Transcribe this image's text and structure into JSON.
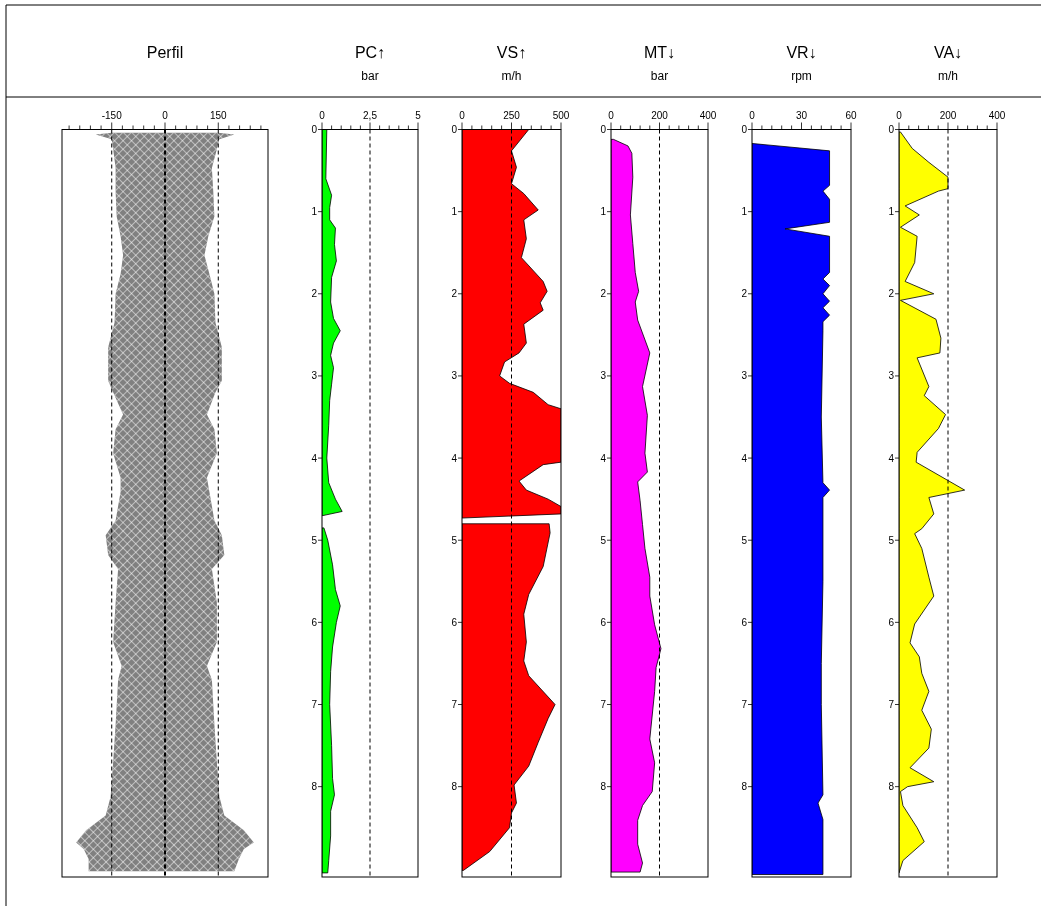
{
  "chart_data": [
    {
      "type": "area",
      "title": "Perfil",
      "orientation": "horizontal",
      "tick_labels": "x",
      "xlim": [
        -290,
        290
      ],
      "xticks": [
        {
          "value": -270,
          "label": null
        },
        {
          "value": -240,
          "label": null
        },
        {
          "value": -210,
          "label": null
        },
        {
          "value": -180,
          "label": null
        },
        -150,
        {
          "value": -120,
          "label": null
        },
        {
          "value": -90,
          "label": null
        },
        {
          "value": -60,
          "label": null
        },
        {
          "value": -30,
          "label": null
        },
        0,
        {
          "value": 30,
          "label": null
        },
        {
          "value": 60,
          "label": null
        },
        {
          "value": 90,
          "label": null
        },
        {
          "value": 120,
          "label": null
        },
        150,
        {
          "value": 180,
          "label": null
        },
        {
          "value": 210,
          "label": null
        },
        {
          "value": 240,
          "label": null
        },
        {
          "value": 270,
          "label": null
        }
      ],
      "ylim": [
        9.1,
        0
      ],
      "ref_lines": [
        {
          "axis": "x",
          "value": -150,
          "color": "#000000",
          "line_style": "dashed"
        },
        {
          "axis": "x",
          "value": 0,
          "color": "#000000",
          "line_style": "dashed"
        },
        {
          "axis": "x",
          "value": 150,
          "color": "#000000",
          "line_style": "dashed"
        }
      ],
      "series": [
        {
          "color": "#808080",
          "x": [
            0.04,
            0.06,
            0.12,
            0.24,
            0.47,
            0.76,
            1.06,
            1.3,
            1.53,
            1.76,
            2.0,
            2.35,
            2.65,
            3.06,
            3.2,
            3.47,
            3.65,
            3.94,
            4.24,
            4.41,
            4.76,
            4.94,
            5.18,
            5.35,
            5.76,
            6.24,
            6.53,
            6.7,
            7.24,
            7.7,
            8.12,
            8.35,
            8.53,
            8.68,
            8.76,
            8.88,
            9.03
          ],
          "values": [
            150,
            195,
            153,
            146,
            132,
            136,
            139,
            122,
            111,
            125,
            139,
            142,
            160,
            160,
            142,
            118,
            139,
            146,
            118,
            125,
            139,
            160,
            167,
            132,
            146,
            146,
            118,
            132,
            139,
            146,
            153,
            167,
            222,
            250,
            222,
            208,
            195
          ]
        },
        {
          "color": "#808080",
          "x": [
            0.04,
            0.06,
            0.12,
            0.24,
            0.47,
            0.76,
            1.06,
            1.3,
            1.53,
            1.76,
            2.0,
            2.35,
            2.65,
            3.06,
            3.2,
            3.47,
            3.65,
            3.94,
            4.24,
            4.41,
            4.76,
            4.94,
            5.18,
            5.35,
            5.76,
            6.24,
            6.53,
            6.7,
            7.24,
            7.7,
            8.12,
            8.35,
            8.53,
            8.68,
            8.76,
            8.88,
            9.03
          ],
          "values": [
            -150,
            -195,
            -150,
            -146,
            -139,
            -139,
            -136,
            -125,
            -118,
            -125,
            -139,
            -142,
            -160,
            -160,
            -146,
            -118,
            -139,
            -146,
            -125,
            -125,
            -139,
            -167,
            -160,
            -132,
            -139,
            -146,
            -122,
            -132,
            -139,
            -146,
            -153,
            -167,
            -222,
            -250,
            -229,
            -215,
            -215
          ]
        }
      ]
    },
    {
      "type": "area",
      "title": "PC↑",
      "subtitle": "bar",
      "orientation": "horizontal",
      "xlim": [
        0,
        5
      ],
      "xticks": [
        0,
        {
          "value": 0.5,
          "label": null
        },
        {
          "value": 1,
          "label": null
        },
        {
          "value": 1.5,
          "label": null
        },
        {
          "value": 2,
          "label": null
        },
        {
          "value": 2.5,
          "label": "2,5"
        },
        {
          "value": 3,
          "label": null
        },
        {
          "value": 3.5,
          "label": null
        },
        {
          "value": 4,
          "label": null
        },
        {
          "value": 4.5,
          "label": null
        },
        5
      ],
      "ylim": [
        9.1,
        0
      ],
      "yticks": [
        0,
        1,
        2,
        3,
        4,
        5,
        6,
        7,
        8
      ],
      "ref_lines": [
        {
          "axis": "x",
          "value": 2.5,
          "color": "#000000",
          "line_style": "dashed"
        }
      ],
      "series": [
        {
          "color": "#00ff00",
          "x": [
            0,
            0.6,
            0.8,
            0.95,
            1.1,
            1.2,
            1.4,
            1.6,
            1.8,
            2.1,
            2.3,
            2.45,
            2.6,
            2.75,
            2.9,
            3.1,
            3.3,
            3.6,
            4.0,
            4.3,
            4.5,
            4.65,
            4.7,
            4.78,
            4.85,
            5.0,
            5.3,
            5.6,
            5.8,
            6.0,
            6.3,
            6.6,
            7.0,
            7.5,
            7.9,
            8.1,
            8.3,
            8.6,
            8.9,
            9.05
          ],
          "values": [
            0.25,
            0.2,
            0.5,
            0.4,
            0.4,
            0.7,
            0.65,
            0.75,
            0.5,
            0.45,
            0.6,
            0.95,
            0.6,
            0.45,
            0.6,
            0.5,
            0.4,
            0.35,
            0.25,
            0.35,
            0.7,
            1.05,
            0.05,
            null,
            0.1,
            0.3,
            0.55,
            0.7,
            0.95,
            0.75,
            0.55,
            0.45,
            0.4,
            0.5,
            0.55,
            0.65,
            0.45,
            0.45,
            0.35,
            0.3
          ]
        }
      ]
    },
    {
      "type": "area",
      "title": "VS↑",
      "subtitle": "m/h",
      "orientation": "horizontal",
      "xlim": [
        0,
        500
      ],
      "xticks": [
        0,
        {
          "value": 50,
          "label": null
        },
        {
          "value": 100,
          "label": null
        },
        {
          "value": 150,
          "label": null
        },
        {
          "value": 200,
          "label": null
        },
        250,
        {
          "value": 300,
          "label": null
        },
        {
          "value": 350,
          "label": null
        },
        {
          "value": 400,
          "label": null
        },
        {
          "value": 450,
          "label": null
        },
        500
      ],
      "ylim": [
        9.1,
        0
      ],
      "yticks": [
        0,
        1,
        2,
        3,
        4,
        5,
        6,
        7,
        8
      ],
      "ref_lines": [
        {
          "axis": "x",
          "value": 250,
          "color": "#000000",
          "line_style": "dashed"
        }
      ],
      "series": [
        {
          "color": "#ff0000",
          "x": [
            0,
            0.26,
            0.46,
            0.66,
            0.78,
            0.98,
            1.1,
            1.33,
            1.56,
            1.85,
            1.97,
            2.11,
            2.2,
            2.37,
            2.6,
            2.72,
            2.83,
            3.0,
            3.09,
            3.2,
            3.35,
            3.4,
            4.05,
            4.08,
            4.28,
            4.39,
            4.5,
            4.59,
            4.68,
            4.73,
            4.76,
            4.8,
            4.91,
            5.32,
            5.66,
            5.9,
            6.24,
            6.47,
            6.65,
            7.0,
            7.17,
            7.46,
            7.75,
            7.98,
            8.2,
            8.32,
            8.5,
            8.79,
            9.02
          ],
          "values": [
            337,
            250,
            275,
            250,
            312,
            385,
            312,
            325,
            300,
            410,
            430,
            395,
            410,
            312,
            325,
            288,
            215,
            190,
            240,
            360,
            435,
            500,
            500,
            410,
            288,
            325,
            435,
            500,
            500,
            0,
            null,
            440,
            445,
            410,
            337,
            312,
            325,
            312,
            337,
            470,
            435,
            385,
            337,
            263,
            275,
            250,
            240,
            140,
            7
          ]
        }
      ]
    },
    {
      "type": "area",
      "title": "MT↓",
      "subtitle": "bar",
      "orientation": "horizontal",
      "xlim": [
        0,
        400
      ],
      "xticks": [
        0,
        {
          "value": 40,
          "label": null
        },
        {
          "value": 80,
          "label": null
        },
        {
          "value": 120,
          "label": null
        },
        {
          "value": 160,
          "label": null
        },
        200,
        {
          "value": 240,
          "label": null
        },
        {
          "value": 280,
          "label": null
        },
        {
          "value": 320,
          "label": null
        },
        {
          "value": 360,
          "label": null
        },
        400
      ],
      "ylim": [
        9.1,
        0
      ],
      "yticks": [
        0,
        1,
        2,
        3,
        4,
        5,
        6,
        7,
        8
      ],
      "ref_lines": [
        {
          "axis": "x",
          "value": 200,
          "color": "#000000",
          "line_style": "dashed"
        }
      ],
      "series": [
        {
          "color": "#ff00ff",
          "x": [
            0.12,
            0.2,
            0.29,
            0.58,
            1.04,
            1.39,
            1.74,
            1.97,
            2.1,
            2.32,
            2.72,
            3.13,
            3.48,
            3.94,
            4.17,
            4.29,
            4.52,
            4.81,
            5.1,
            5.45,
            5.68,
            6.03,
            6.32,
            6.55,
            6.84,
            7.42,
            7.71,
            8.06,
            8.23,
            8.41,
            8.7,
            8.93,
            9.04
          ],
          "values": [
            10,
            70,
            86,
            90,
            80,
            90,
            100,
            114,
            100,
            110,
            160,
            130,
            150,
            140,
            150,
            110,
            120,
            130,
            140,
            160,
            160,
            180,
            206,
            186,
            180,
            160,
            180,
            170,
            130,
            110,
            110,
            130,
            120
          ]
        }
      ]
    },
    {
      "type": "area",
      "title": "VR↓",
      "subtitle": "rpm",
      "orientation": "horizontal",
      "xlim": [
        0,
        60
      ],
      "xticks": [
        0,
        {
          "value": 6,
          "label": null
        },
        {
          "value": 12,
          "label": null
        },
        {
          "value": 18,
          "label": null
        },
        {
          "value": 24,
          "label": null
        },
        30,
        {
          "value": 36,
          "label": null
        },
        {
          "value": 42,
          "label": null
        },
        {
          "value": 48,
          "label": null
        },
        {
          "value": 54,
          "label": null
        },
        60
      ],
      "ylim": [
        9.1,
        0
      ],
      "yticks": [
        0,
        1,
        2,
        3,
        4,
        5,
        6,
        7,
        8
      ],
      "series": [
        {
          "color": "#0000ff",
          "x": [
            0.17,
            0.26,
            0.68,
            0.75,
            0.85,
            1.13,
            1.21,
            1.3,
            1.74,
            1.82,
            1.9,
            2.0,
            2.09,
            2.17,
            2.26,
            2.34,
            2.45,
            3.5,
            4.3,
            4.39,
            4.48,
            5.5,
            6.5,
            7.0,
            8.1,
            8.2,
            8.4,
            9.07
          ],
          "values": [
            0,
            47,
            47,
            43,
            47,
            47,
            20,
            47,
            47,
            43,
            47,
            43,
            47,
            43,
            47,
            43,
            43,
            42,
            43,
            47,
            43,
            43,
            42,
            42,
            43,
            40,
            43,
            43
          ]
        }
      ]
    },
    {
      "type": "area",
      "title": "VA↓",
      "subtitle": "m/h",
      "orientation": "horizontal",
      "xlim": [
        0,
        400
      ],
      "xticks": [
        0,
        {
          "value": 40,
          "label": null
        },
        {
          "value": 80,
          "label": null
        },
        {
          "value": 120,
          "label": null
        },
        {
          "value": 160,
          "label": null
        },
        200,
        {
          "value": 240,
          "label": null
        },
        {
          "value": 280,
          "label": null
        },
        {
          "value": 320,
          "label": null
        },
        {
          "value": 360,
          "label": null
        },
        400
      ],
      "ylim": [
        9.1,
        0
      ],
      "yticks": [
        0,
        1,
        2,
        3,
        4,
        5,
        6,
        7,
        8
      ],
      "ref_lines": [
        {
          "axis": "x",
          "value": 200,
          "color": "#000000",
          "line_style": "dashed"
        }
      ],
      "series": [
        {
          "color": "#ffff00",
          "x": [
            0.03,
            0.23,
            0.4,
            0.58,
            0.72,
            0.75,
            0.93,
            1.04,
            1.19,
            1.3,
            1.62,
            1.85,
            2.0,
            2.08,
            2.31,
            2.54,
            2.72,
            2.78,
            3.13,
            3.24,
            3.47,
            3.64,
            3.93,
            4.05,
            4.39,
            4.48,
            4.68,
            4.86,
            4.92,
            5.1,
            5.45,
            5.68,
            6.02,
            6.25,
            6.42,
            6.62,
            6.84,
            7.07,
            7.3,
            7.53,
            7.77,
            7.94,
            8.0,
            8.06,
            8.23,
            8.5,
            8.67,
            8.9,
            9.05
          ],
          "values": [
            6,
            54,
            122,
            200,
            200,
            161,
            25,
            83,
            6,
            74,
            64,
            25,
            142,
            6,
            151,
            171,
            167,
            74,
            122,
            103,
            190,
            161,
            74,
            70,
            268,
            122,
            142,
            93,
            64,
            93,
            122,
            142,
            64,
            45,
            83,
            93,
            122,
            93,
            132,
            122,
            45,
            142,
            35,
            6,
            16,
            74,
            103,
            16,
            0
          ]
        }
      ]
    }
  ]
}
